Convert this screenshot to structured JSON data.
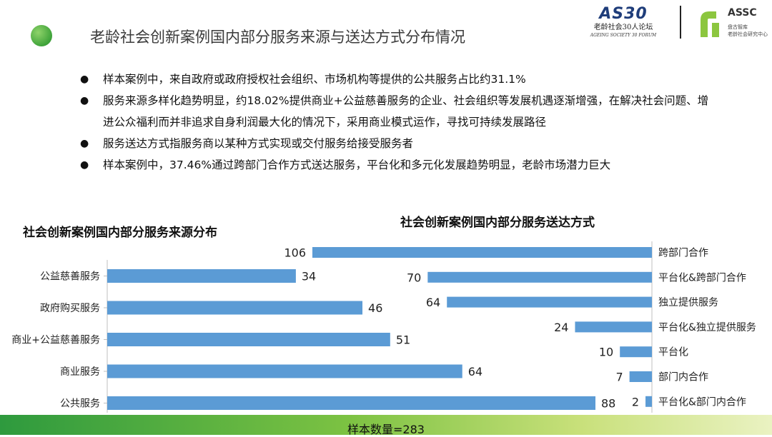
{
  "header": {
    "title": "老龄社会创新案例国内部分服务来源与送达方式分布情况"
  },
  "logos": {
    "as30_text": "AS30",
    "as30_cn": "老龄社会30人论坛",
    "as30_en": "AGEING SOCIETY 30 FORUM",
    "assc_text": "ASSC",
    "assc_sub1": "盘古智库",
    "assc_sub2": "老龄社会研究中心"
  },
  "bullets": [
    {
      "marker": "●",
      "text": "样本案例中，来自政府或政府授权社会组织、市场机构等提供的公共服务占比约31.1%"
    },
    {
      "marker": "●",
      "text": "服务来源多样化趋势明显，约18.02%提供商业+公益慈善服务的企业、社会组织等发展机遇逐渐增强，在解决社会问题、增进公众福利而并非追求自身利润最大化的情况下，采用商业模式运作，寻找可持续发展路径"
    },
    {
      "marker": "●",
      "text": "服务送达方式指服务商以某种方式实现或交付服务给接受服务者"
    },
    {
      "marker": "●",
      "text": "样本案例中，37.46%通过跨部门合作方式送达服务，平台化和多元化发展趋势明显，老龄市场潜力巨大"
    }
  ],
  "footer": {
    "sample_text": "样本数量=283"
  },
  "colors": {
    "bar": "#5b9bd5",
    "axis": "#bfbfbf"
  },
  "chart_data": [
    {
      "type": "bar",
      "orientation": "horizontal",
      "title": "社会创新案例国内部分服务来源分布",
      "categories": [
        "公益慈善服务",
        "政府购买服务",
        "商业+公益慈善服务",
        "商业服务",
        "公共服务"
      ],
      "values": [
        34,
        46,
        51,
        64,
        88
      ],
      "xlim": [
        0,
        88
      ],
      "grid": false,
      "data_labels": true
    },
    {
      "type": "bar",
      "orientation": "horizontal-reversed",
      "title": "社会创新案例国内部分服务送达方式",
      "categories": [
        "跨部门合作",
        "平台化&跨部门合作",
        "独立提供服务",
        "平台化&独立提供服务",
        "平台化",
        "部门内合作",
        "平台化&部门内合作"
      ],
      "values": [
        106,
        70,
        64,
        24,
        10,
        7,
        2
      ],
      "xlim": [
        0,
        106
      ],
      "grid": false,
      "data_labels": true
    }
  ]
}
